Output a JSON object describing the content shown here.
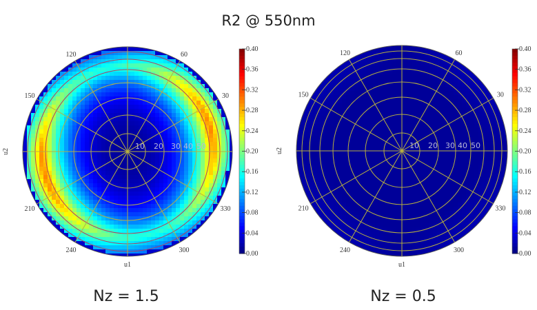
{
  "title": "R2 @ 550nm",
  "chart_data": [
    {
      "type": "heatmap",
      "projection": "polar",
      "subtitle": "Nz = 1.5",
      "xlabel": "u1",
      "ylabel": "u2",
      "angle_ticks": [
        "30",
        "60",
        "120",
        "150",
        "210",
        "240",
        "300",
        "330"
      ],
      "radial_ticks": [
        "10",
        "20",
        "30",
        "40",
        "50"
      ],
      "colorbar_ticks": [
        "0.40",
        "0.36",
        "0.32",
        "0.28",
        "0.24",
        "0.20",
        "0.16",
        "0.12",
        "0.08",
        "0.04",
        "0.00"
      ],
      "zlim": [
        0,
        0.4
      ],
      "colormap": "jet",
      "approx_max": 0.3,
      "approx_center": 0.01
    },
    {
      "type": "heatmap",
      "projection": "polar",
      "subtitle": "Nz = 0.5",
      "xlabel": "u1",
      "ylabel": "u2",
      "angle_ticks": [
        "30",
        "60",
        "120",
        "150",
        "210",
        "240",
        "300",
        "330"
      ],
      "radial_ticks": [
        "10",
        "20",
        "30",
        "40",
        "50"
      ],
      "colorbar_ticks": [
        "0.40",
        "0.36",
        "0.32",
        "0.28",
        "0.24",
        "0.20",
        "0.16",
        "0.12",
        "0.08",
        "0.04",
        "0.00"
      ],
      "zlim": [
        0,
        0.4
      ],
      "colormap": "jet",
      "approx_max": 0.02,
      "approx_center": 0.01
    }
  ],
  "colors": {
    "grid": "#b8b040",
    "grid_outer": "#b04060"
  }
}
